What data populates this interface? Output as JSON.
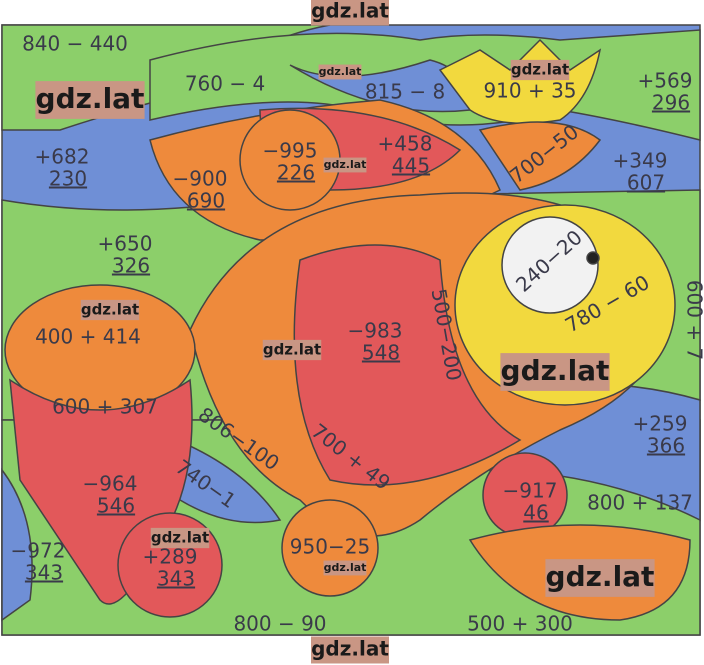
{
  "watermarks": [
    "gdz.lat",
    "gdz.lat",
    "gdz.lat",
    "gdz.lat",
    "gdz.lat",
    "gdz.lat",
    "gdz.lat",
    "gdz.lat",
    "gdz.lat",
    "gdz.lat",
    "gdz.lat",
    "gdz.lat"
  ],
  "expressions": [
    "840 − 440",
    "760 − 4",
    "815 − 8",
    "910 + 35",
    "700−50",
    "240−20",
    "780 − 60",
    "400 + 414",
    "500−200",
    "600 + 307",
    "806−100",
    "700 + 49",
    "740−1",
    "800 + 137",
    "950−25",
    "800 − 90",
    "500 + 300",
    "600 + 7"
  ],
  "column_sums": [
    {
      "top": "+569",
      "bottom": "296"
    },
    {
      "top": "+682",
      "bottom": "230"
    },
    {
      "top": "−995",
      "bottom": "226"
    },
    {
      "top": "+458",
      "bottom": "445"
    },
    {
      "top": "+349",
      "bottom": "607"
    },
    {
      "top": "−900",
      "bottom": "690"
    },
    {
      "top": "+650",
      "bottom": "326"
    },
    {
      "top": "−983",
      "bottom": "548"
    },
    {
      "top": "+259",
      "bottom": "366"
    },
    {
      "top": "−964",
      "bottom": "546"
    },
    {
      "top": "−917",
      "bottom": "46"
    },
    {
      "top": "−972",
      "bottom": "343"
    },
    {
      "top": "+289",
      "bottom": "343"
    }
  ]
}
